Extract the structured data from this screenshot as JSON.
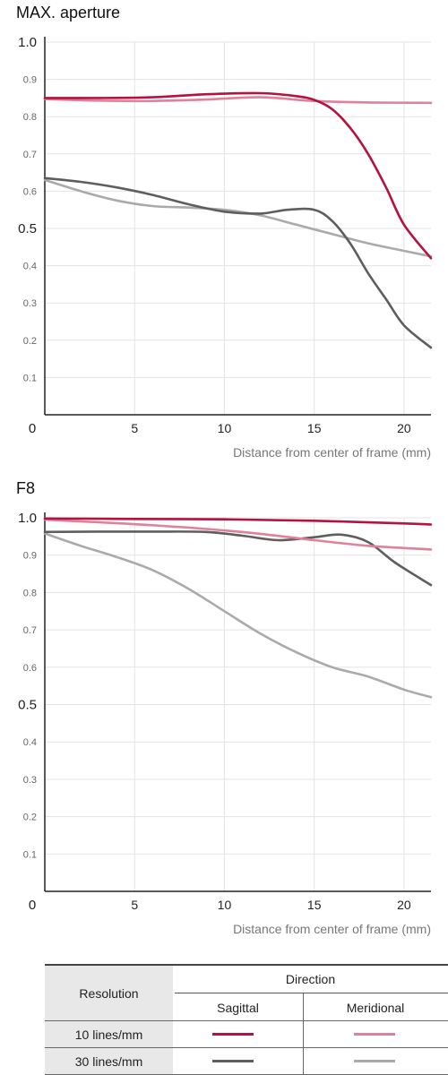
{
  "colors": {
    "sagittal_10": "#b5123f",
    "meridional_10": "#e0809a",
    "sagittal_30": "#5e5e5e",
    "meridional_30": "#aaaaaa",
    "grid": "#e3e3e3",
    "axis": "#222222"
  },
  "chart_data": [
    {
      "type": "line",
      "title": "MAX. aperture",
      "xlabel": "Distance from center of frame (mm)",
      "ylabel": "",
      "xlim": [
        0,
        21.5
      ],
      "ylim": [
        0,
        1.0
      ],
      "xticks": [
        5,
        10,
        15,
        20
      ],
      "xtick_labels": [
        "5",
        "10",
        "15",
        "20"
      ],
      "yticks": [
        0.1,
        0.2,
        0.3,
        0.4,
        0.5,
        0.6,
        0.7,
        0.8,
        0.9,
        1.0
      ],
      "ytick_labels": [
        "0.1",
        "0.2",
        "0.3",
        "0.4",
        "0.5",
        "0.6",
        "0.7",
        "0.8",
        "0.9",
        "1.0"
      ],
      "origin_label": "0",
      "grid": true,
      "series": [
        {
          "key": "sagittal_10",
          "x": [
            0,
            3,
            6,
            9,
            12,
            14,
            15,
            16,
            17,
            18,
            19,
            20,
            21.5
          ],
          "y": [
            0.85,
            0.85,
            0.852,
            0.86,
            0.863,
            0.855,
            0.845,
            0.82,
            0.77,
            0.7,
            0.61,
            0.51,
            0.42
          ]
        },
        {
          "key": "meridional_10",
          "x": [
            0,
            3,
            6,
            9,
            12,
            15,
            18,
            21.5
          ],
          "y": [
            0.847,
            0.843,
            0.842,
            0.846,
            0.852,
            0.842,
            0.838,
            0.837
          ]
        },
        {
          "key": "sagittal_30",
          "x": [
            0,
            2,
            4,
            6,
            8,
            10,
            12,
            13.5,
            15,
            16,
            17,
            18,
            19,
            20,
            21.5
          ],
          "y": [
            0.635,
            0.625,
            0.61,
            0.59,
            0.565,
            0.545,
            0.54,
            0.55,
            0.55,
            0.52,
            0.46,
            0.38,
            0.31,
            0.24,
            0.18
          ]
        },
        {
          "key": "meridional_30",
          "x": [
            0,
            2,
            4,
            6,
            8,
            10,
            12,
            14,
            16,
            18,
            20,
            21.5
          ],
          "y": [
            0.63,
            0.6,
            0.575,
            0.56,
            0.556,
            0.55,
            0.535,
            0.51,
            0.485,
            0.46,
            0.44,
            0.425
          ]
        }
      ]
    },
    {
      "type": "line",
      "title": "F8",
      "xlabel": "Distance from center of frame (mm)",
      "ylabel": "",
      "xlim": [
        0,
        21.5
      ],
      "ylim": [
        0,
        1.0
      ],
      "xticks": [
        5,
        10,
        15,
        20
      ],
      "xtick_labels": [
        "5",
        "10",
        "15",
        "20"
      ],
      "yticks": [
        0.1,
        0.2,
        0.3,
        0.4,
        0.5,
        0.6,
        0.7,
        0.8,
        0.9,
        1.0
      ],
      "ytick_labels": [
        "0.1",
        "0.2",
        "0.3",
        "0.4",
        "0.5",
        "0.6",
        "0.7",
        "0.8",
        "0.9",
        "1.0"
      ],
      "origin_label": "0",
      "grid": true,
      "series": [
        {
          "key": "sagittal_10",
          "x": [
            0,
            5,
            10,
            15,
            20,
            21.5
          ],
          "y": [
            0.998,
            0.997,
            0.996,
            0.992,
            0.985,
            0.982
          ]
        },
        {
          "key": "meridional_10",
          "x": [
            0,
            3,
            6,
            9,
            12,
            15,
            18,
            21.5
          ],
          "y": [
            0.995,
            0.988,
            0.98,
            0.97,
            0.957,
            0.94,
            0.925,
            0.915
          ]
        },
        {
          "key": "sagittal_30",
          "x": [
            0,
            3,
            6,
            9,
            11,
            13,
            15,
            16.5,
            18,
            19.5,
            21.5
          ],
          "y": [
            0.962,
            0.963,
            0.963,
            0.962,
            0.952,
            0.94,
            0.948,
            0.955,
            0.935,
            0.88,
            0.82
          ]
        },
        {
          "key": "meridional_30",
          "x": [
            0,
            2,
            4,
            6,
            8,
            10,
            12,
            14,
            16,
            18,
            20,
            21.5
          ],
          "y": [
            0.958,
            0.925,
            0.895,
            0.86,
            0.81,
            0.75,
            0.69,
            0.64,
            0.6,
            0.575,
            0.54,
            0.52
          ]
        }
      ]
    }
  ],
  "legend": {
    "resolution_header": "Resolution",
    "direction_header": "Direction",
    "sagittal_label": "Sagittal",
    "meridional_label": "Meridional",
    "rows": [
      {
        "label": "10 lines/mm"
      },
      {
        "label": "30 lines/mm"
      }
    ]
  }
}
